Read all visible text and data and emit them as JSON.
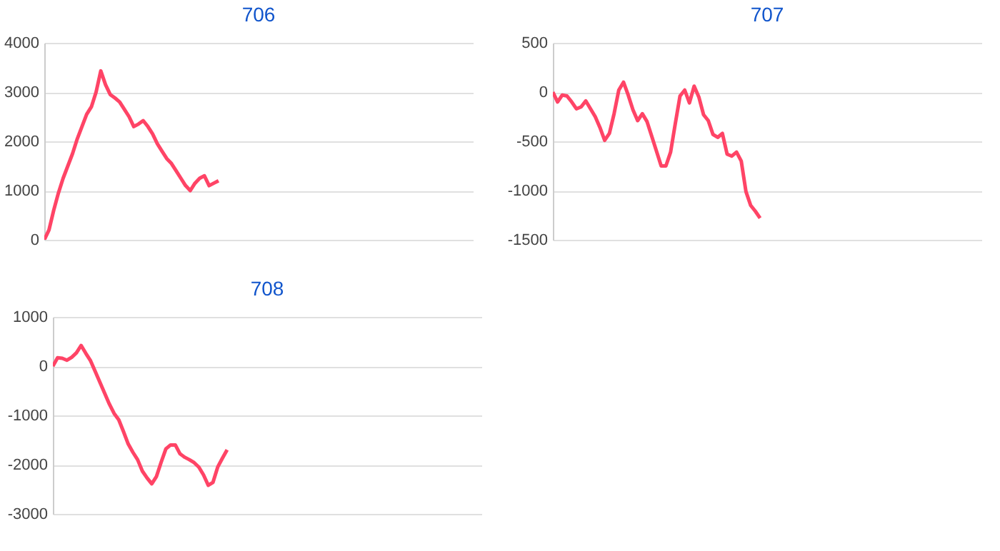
{
  "chart_data": [
    {
      "type": "line",
      "title": "706",
      "tick_labels": "y",
      "grid": "y",
      "legend": false,
      "ylim": [
        0,
        4000
      ],
      "yticks": [
        0,
        1000,
        2000,
        3000,
        4000
      ],
      "categories": [
        null,
        null,
        null,
        null,
        null,
        null,
        null,
        null,
        null,
        null,
        null,
        null,
        null,
        null,
        null,
        null,
        null,
        null,
        null,
        null,
        null,
        null,
        null,
        null,
        null,
        null,
        null,
        null,
        null,
        null,
        null,
        null,
        null,
        null,
        null,
        null,
        null,
        null,
        null,
        null,
        null,
        null,
        null,
        null,
        null,
        null,
        null,
        null,
        null,
        null,
        null,
        null,
        null,
        null,
        null,
        null,
        null,
        null,
        null,
        null,
        null,
        null,
        null,
        null,
        null,
        null,
        null,
        null,
        null,
        null,
        null,
        null,
        null,
        null,
        null,
        null,
        null,
        null,
        null,
        null,
        null,
        null,
        null,
        null,
        null,
        null,
        null,
        null,
        null,
        null,
        null,
        null
      ],
      "series": [
        {
          "color": "#ff4466",
          "values": [
            0,
            200,
            600,
            950,
            1250,
            1500,
            1750,
            2050,
            2300,
            2550,
            2700,
            3000,
            3430,
            3150,
            2950,
            2880,
            2800,
            2650,
            2500,
            2300,
            2350,
            2420,
            2300,
            2150,
            1950,
            1800,
            1650,
            1550,
            1400,
            1250,
            1100,
            1000,
            1150,
            1250,
            1300,
            1100,
            1150,
            1200,
            null,
            null,
            null,
            null,
            null,
            null,
            null,
            null,
            null,
            null,
            null,
            null,
            null,
            null,
            null,
            null,
            null,
            null,
            null,
            null,
            null,
            null,
            null,
            null,
            null,
            null,
            null,
            null,
            null,
            null,
            null,
            null,
            null,
            null,
            null,
            null,
            null,
            null,
            null,
            null,
            null,
            null,
            null,
            null,
            null,
            null,
            null,
            null,
            null,
            null,
            null,
            null,
            null,
            null
          ]
        }
      ]
    },
    {
      "type": "line",
      "title": "707",
      "tick_labels": "y",
      "grid": "y",
      "legend": false,
      "ylim": [
        -1500,
        500
      ],
      "yticks": [
        -1500,
        -1000,
        -500,
        0,
        500
      ],
      "categories": [
        null,
        null,
        null,
        null,
        null,
        null,
        null,
        null,
        null,
        null,
        null,
        null,
        null,
        null,
        null,
        null,
        null,
        null,
        null,
        null,
        null,
        null,
        null,
        null,
        null,
        null,
        null,
        null,
        null,
        null,
        null,
        null,
        null,
        null,
        null,
        null,
        null,
        null,
        null,
        null,
        null,
        null,
        null,
        null,
        null,
        null,
        null,
        null,
        null,
        null,
        null,
        null,
        null,
        null,
        null,
        null,
        null,
        null,
        null,
        null,
        null,
        null,
        null,
        null,
        null,
        null,
        null,
        null,
        null,
        null,
        null,
        null,
        null,
        null,
        null,
        null,
        null,
        null,
        null,
        null,
        null,
        null,
        null,
        null,
        null,
        null,
        null,
        null,
        null,
        null,
        null,
        null
      ],
      "series": [
        {
          "color": "#ff4466",
          "values": [
            0,
            -100,
            -30,
            -40,
            -100,
            -170,
            -150,
            -90,
            -170,
            -250,
            -360,
            -490,
            -420,
            -220,
            20,
            100,
            -30,
            -180,
            -290,
            -220,
            -300,
            -450,
            -600,
            -750,
            -750,
            -610,
            -320,
            -40,
            20,
            -110,
            60,
            -50,
            -230,
            -290,
            -430,
            -460,
            -420,
            -630,
            -650,
            -610,
            -700,
            -1010,
            -1150,
            -1210,
            -1280,
            null,
            null,
            null,
            null,
            null,
            null,
            null,
            null,
            null,
            null,
            null,
            null,
            null,
            null,
            null,
            null,
            null,
            null,
            null,
            null,
            null,
            null,
            null,
            null,
            null,
            null,
            null,
            null,
            null,
            null,
            null,
            null,
            null,
            null,
            null,
            null,
            null,
            null,
            null,
            null,
            null,
            null,
            null,
            null,
            null,
            null,
            null
          ]
        }
      ]
    },
    {
      "type": "line",
      "title": "708",
      "tick_labels": "y",
      "grid": "y",
      "legend": false,
      "ylim": [
        -3000,
        1000
      ],
      "yticks": [
        -3000,
        -2000,
        -1000,
        0,
        1000
      ],
      "categories": [
        null,
        null,
        null,
        null,
        null,
        null,
        null,
        null,
        null,
        null,
        null,
        null,
        null,
        null,
        null,
        null,
        null,
        null,
        null,
        null,
        null,
        null,
        null,
        null,
        null,
        null,
        null,
        null,
        null,
        null,
        null,
        null,
        null,
        null,
        null,
        null,
        null,
        null,
        null,
        null,
        null,
        null,
        null,
        null,
        null,
        null,
        null,
        null,
        null,
        null,
        null,
        null,
        null,
        null,
        null,
        null,
        null,
        null,
        null,
        null,
        null,
        null,
        null,
        null,
        null,
        null,
        null,
        null,
        null,
        null,
        null,
        null,
        null,
        null,
        null,
        null,
        null,
        null,
        null,
        null,
        null,
        null,
        null,
        null,
        null,
        null,
        null,
        null,
        null,
        null,
        null,
        null
      ],
      "series": [
        {
          "color": "#ff4466",
          "values": [
            0,
            170,
            160,
            120,
            180,
            270,
            420,
            260,
            110,
            -110,
            -330,
            -550,
            -770,
            -960,
            -1090,
            -1330,
            -1580,
            -1750,
            -1900,
            -2130,
            -2270,
            -2390,
            -2240,
            -1950,
            -1680,
            -1600,
            -1600,
            -1780,
            -1850,
            -1900,
            -1960,
            -2050,
            -2210,
            -2420,
            -2360,
            -2050,
            -1870,
            -1700,
            null,
            null,
            null,
            null,
            null,
            null,
            null,
            null,
            null,
            null,
            null,
            null,
            null,
            null,
            null,
            null,
            null,
            null,
            null,
            null,
            null,
            null,
            null,
            null,
            null,
            null,
            null,
            null,
            null,
            null,
            null,
            null,
            null,
            null,
            null,
            null,
            null,
            null,
            null,
            null,
            null,
            null,
            null,
            null,
            null,
            null,
            null,
            null,
            null,
            null,
            null,
            null,
            null,
            null
          ]
        }
      ]
    }
  ]
}
